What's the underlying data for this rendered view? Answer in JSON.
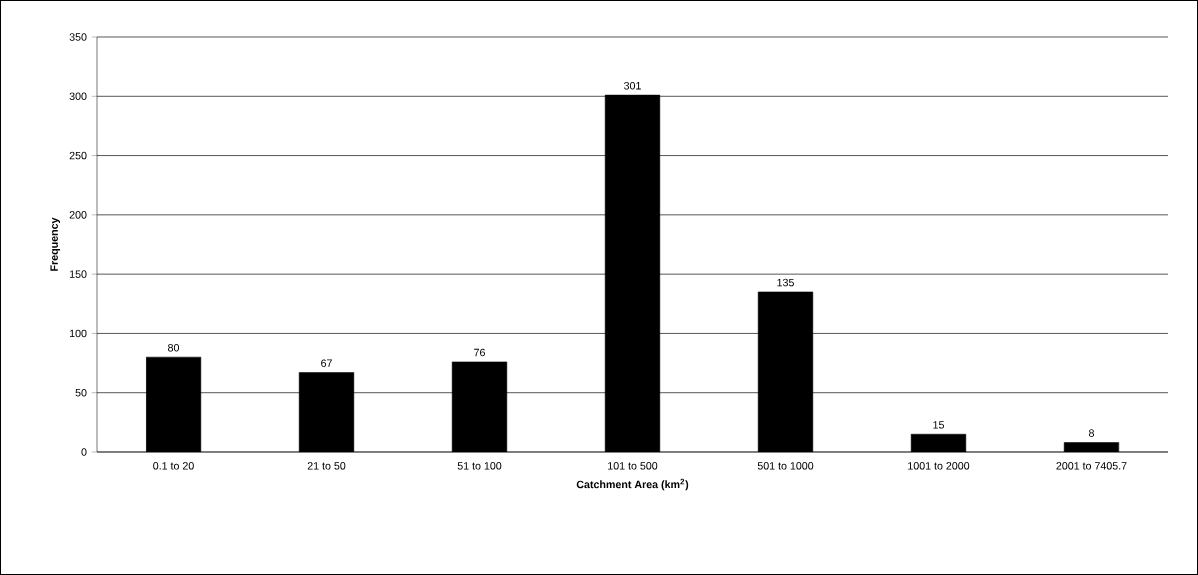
{
  "chart_data": {
    "type": "bar",
    "xlabel": "Catchment Area (km$^{2}$)",
    "ylabel": "Frequency",
    "categories": [
      "0.1 to 20",
      "21 to 50",
      "51 to 100",
      "101 to 500",
      "501 to 1000",
      "1001 to 2000",
      "2001 to 7405.7"
    ],
    "values": [
      80,
      67,
      76,
      301,
      135,
      15,
      8
    ],
    "color": "#000000",
    "ylim": [
      0,
      350
    ],
    "yticks": [
      0,
      50,
      100,
      150,
      200,
      250,
      300,
      350
    ],
    "grid": "y",
    "data_labels": true
  }
}
